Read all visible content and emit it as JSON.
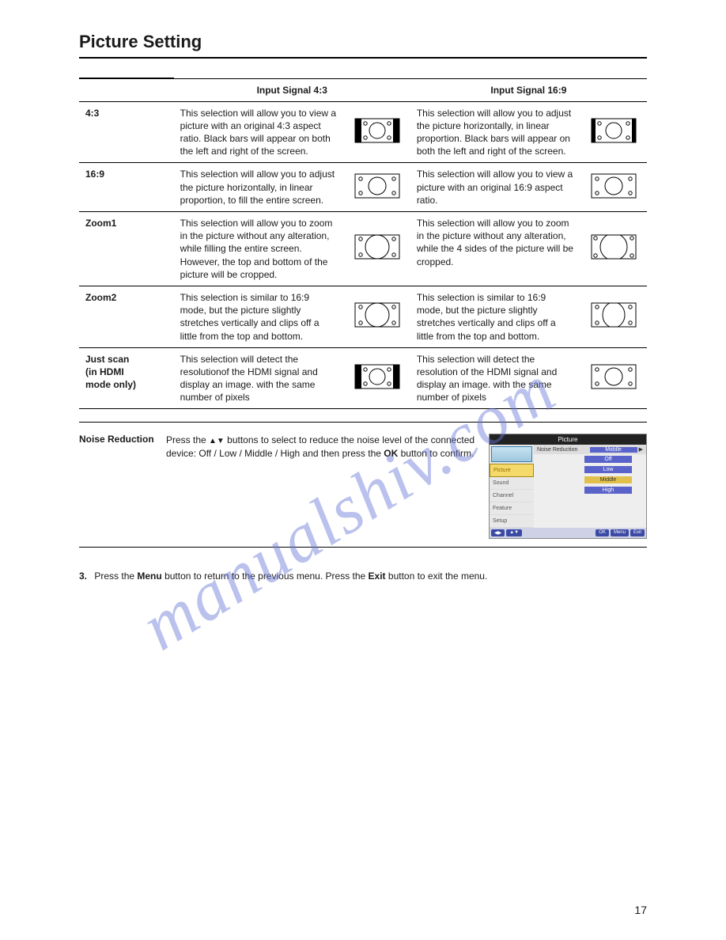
{
  "title": "Picture Setting",
  "page_number": "17",
  "watermark": "manualshiv.com",
  "table": {
    "head_col1": "",
    "head_col2": "Input Signal 4:3",
    "head_col3": "Input Signal 16:9",
    "rows": [
      {
        "name": "4:3",
        "d43": "This selection will allow you to view a picture with an original 4:3 aspect ratio. Black bars will appear on both the left and right of the screen.",
        "d169": "This selection will allow you to adjust the picture horizontally, in linear proportion. Black bars will appear on both the left and right of the screen.",
        "icon43": "pillarbox",
        "icon169": "pillarbox-narrow"
      },
      {
        "name": "16:9",
        "d43": "This selection will allow you to adjust the picture horizontally, in linear proportion, to fill the entire screen.",
        "d169": "This selection will allow you to view a picture with an original 16:9 aspect ratio.",
        "icon43": "full-wide",
        "icon169": "full-wide"
      },
      {
        "name": "Zoom1",
        "d43": "This selection will allow you to zoom in the picture without any alteration, while filling the entire screen. However, the top and bottom of the picture will be cropped.",
        "d169": "This selection will allow you to zoom in the picture without any alteration, while the 4 sides of the picture will be cropped.",
        "icon43": "zoom-tb",
        "icon169": "zoom-all"
      },
      {
        "name": "Zoom2",
        "d43": "This selection is similar to 16:9 mode, but the picture slightly stretches vertically and clips off a little from the top and bottom.",
        "d169": "This selection is similar to 16:9 mode, but the picture slightly stretches vertically and clips off a little from the top and bottom.",
        "icon43": "zoom-tb",
        "icon169": "zoom-tb-wide"
      },
      {
        "name": "Just scan\n(in HDMI\nmode only)",
        "d43": "This selection will detect the resolutionof the HDMI signal and display an image. with the same number of pixels",
        "d169": "This selection will detect the resolution of the HDMI signal and display an image. with the same number of pixels",
        "icon43": "pillarbox",
        "icon169": "full-wide"
      }
    ]
  },
  "noise_reduction": {
    "label": "Noise Reduction",
    "text_pre": "Press the ",
    "text_mid": " buttons to select to reduce the noise level of the connected device: Off / Low / Middle / High and then press the ",
    "ok": "OK",
    "text_post": " button to confirm.",
    "menu": {
      "header": "Picture",
      "side": [
        "Picture",
        "Sound",
        "Channel",
        "Feature",
        "Setup"
      ],
      "row_label": "Noise Reduction",
      "row_value": "Middle",
      "options": [
        "Off",
        "Low",
        "Middle",
        "High"
      ],
      "selected": "Middle",
      "footer": [
        "◀▶",
        "▲▼",
        "OK",
        "Menu",
        "Exit"
      ]
    }
  },
  "instruction": {
    "num": "3.",
    "pre": "Press the ",
    "menu": "Menu",
    "mid": " button to return to the previous menu. Press the ",
    "exit": "Exit",
    "post": "  button to exit the menu."
  }
}
